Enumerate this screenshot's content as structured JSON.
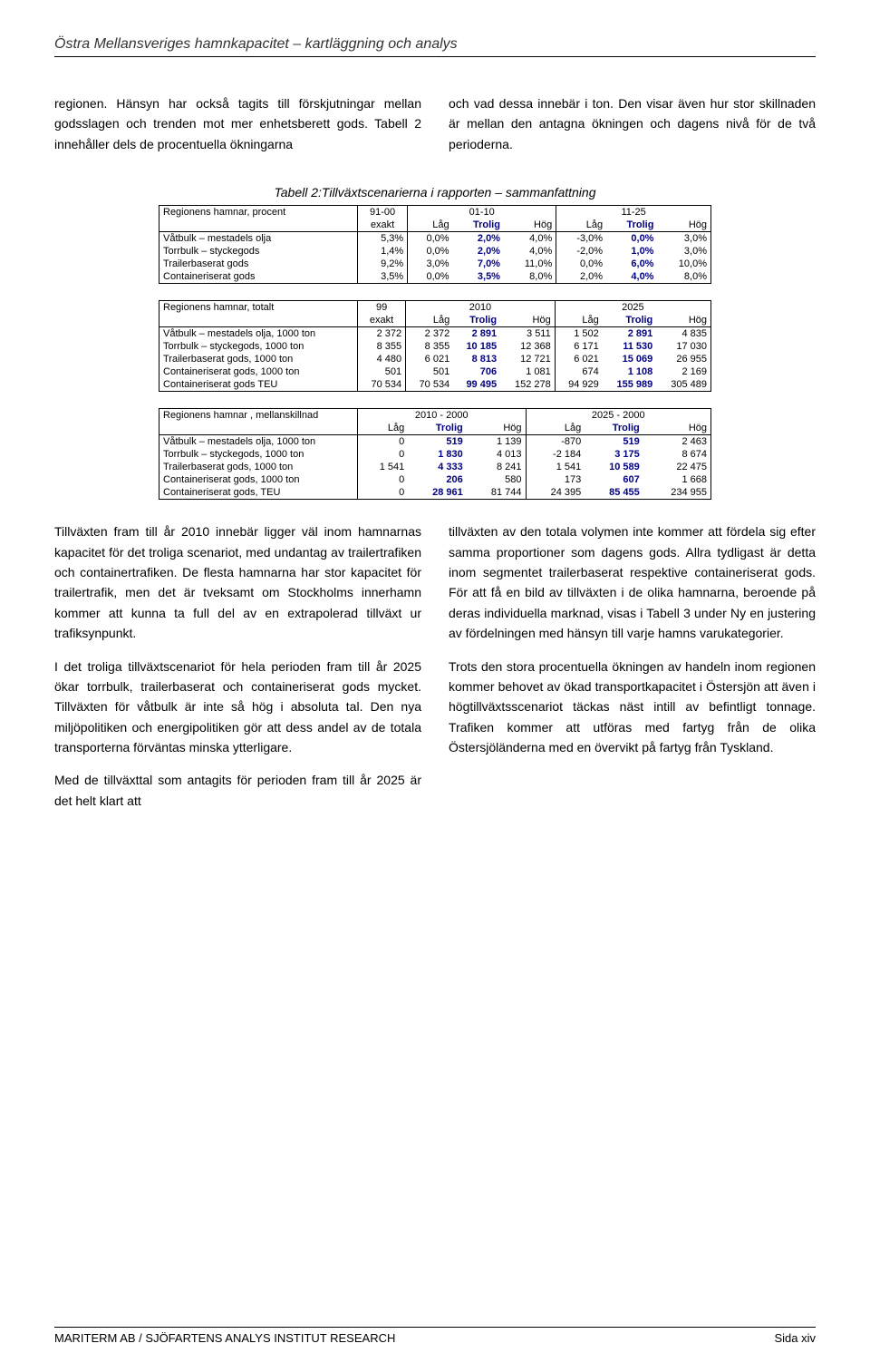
{
  "header": {
    "title": "Östra Mellansveriges hamnkapacitet – kartläggning och analys"
  },
  "intro": {
    "left": "regionen. Hänsyn har också tagits till förskjutningar mellan godsslagen och trenden mot mer enhetsberett gods. Tabell 2 innehåller dels de procentuella ökningarna",
    "right": "och vad dessa innebär i ton. Den visar även hur stor skillnaden är mellan den antagna ökningen och dagens nivå för de två perioderna."
  },
  "table_caption": "Tabell 2:Tillväxtscenarierna i rapporten – sammanfattning",
  "colors": {
    "trolig": "#000080"
  },
  "table1": {
    "title": "Regionens hamnar, procent",
    "period_cols": [
      "91-00",
      "01-10",
      "11-25"
    ],
    "sub_headers": [
      "exakt",
      "Låg",
      "Trolig",
      "Hög",
      "Låg",
      "Trolig",
      "Hög"
    ],
    "rows": [
      {
        "label": "Våtbulk – mestadels olja",
        "vals": [
          "5,3%",
          "0,0%",
          "2,0%",
          "4,0%",
          "-3,0%",
          "0,0%",
          "3,0%"
        ]
      },
      {
        "label": "Torrbulk – styckegods",
        "vals": [
          "1,4%",
          "0,0%",
          "2,0%",
          "4,0%",
          "-2,0%",
          "1,0%",
          "3,0%"
        ]
      },
      {
        "label": "Trailerbaserat gods",
        "vals": [
          "9,2%",
          "3,0%",
          "7,0%",
          "11,0%",
          "0,0%",
          "6,0%",
          "10,0%"
        ]
      },
      {
        "label": "Containeriserat gods",
        "vals": [
          "3,5%",
          "0,0%",
          "3,5%",
          "8,0%",
          "2,0%",
          "4,0%",
          "8,0%"
        ]
      }
    ]
  },
  "table2": {
    "title": "Regionens hamnar, totalt",
    "period_cols": [
      "99",
      "2010",
      "2025"
    ],
    "sub_headers": [
      "exakt",
      "Låg",
      "Trolig",
      "Hög",
      "Låg",
      "Trolig",
      "Hög"
    ],
    "rows": [
      {
        "label": "Våtbulk – mestadels olja, 1000 ton",
        "vals": [
          "2 372",
          "2 372",
          "2 891",
          "3 511",
          "1 502",
          "2 891",
          "4 835"
        ]
      },
      {
        "label": "Torrbulk – styckegods, 1000 ton",
        "vals": [
          "8 355",
          "8 355",
          "10 185",
          "12 368",
          "6 171",
          "11 530",
          "17 030"
        ]
      },
      {
        "label": "Trailerbaserat gods, 1000 ton",
        "vals": [
          "4 480",
          "6 021",
          "8 813",
          "12 721",
          "6 021",
          "15 069",
          "26 955"
        ]
      },
      {
        "label": "Containeriserat gods, 1000 ton",
        "vals": [
          "501",
          "501",
          "706",
          "1 081",
          "674",
          "1 108",
          "2 169"
        ]
      },
      {
        "label": "Containeriserat gods TEU",
        "vals": [
          "70 534",
          "70 534",
          "99 495",
          "152 278",
          "94 929",
          "155 989",
          "305 489"
        ]
      }
    ]
  },
  "table3": {
    "title": "Regionens hamnar , mellanskillnad",
    "period_cols": [
      "2010 - 2000",
      "2025 - 2000"
    ],
    "sub_headers": [
      "Låg",
      "Trolig",
      "Hög",
      "Låg",
      "Trolig",
      "Hög"
    ],
    "rows": [
      {
        "label": "Våtbulk – mestadels olja, 1000 ton",
        "vals": [
          "0",
          "519",
          "1 139",
          "-870",
          "519",
          "2 463"
        ]
      },
      {
        "label": "Torrbulk – styckegods, 1000 ton",
        "vals": [
          "0",
          "1 830",
          "4 013",
          "-2 184",
          "3 175",
          "8 674"
        ]
      },
      {
        "label": "Trailerbaserat gods, 1000 ton",
        "vals": [
          "1 541",
          "4 333",
          "8 241",
          "1 541",
          "10 589",
          "22 475"
        ]
      },
      {
        "label": "Containeriserat gods, 1000 ton",
        "vals": [
          "0",
          "206",
          "580",
          "173",
          "607",
          "1 668"
        ]
      },
      {
        "label": "Containeriserat gods, TEU",
        "vals": [
          "0",
          "28 961",
          "81 744",
          "24 395",
          "85 455",
          "234 955"
        ]
      }
    ]
  },
  "body": {
    "left_paras": [
      "Tillväxten fram till år 2010 innebär ligger väl inom hamnarnas kapacitet för det troliga scenariot, med undantag av trailertrafiken och containertrafiken. De flesta hamnarna har stor kapacitet för trailertrafik, men det är tveksamt om Stockholms innerhamn kommer att kunna ta full del av en extrapolerad tillväxt ur trafiksynpunkt.",
      "I det troliga tillväxtscenariot för hela perioden fram till år 2025 ökar torrbulk, trailerbaserat och containeriserat gods mycket. Tillväxten för våtbulk är inte så hög i absoluta tal. Den nya miljöpolitiken och energipolitiken gör att dess andel av de totala transporterna förväntas minska ytterligare.",
      "Med de tillväxttal som antagits för perioden fram till år 2025 är det helt klart att"
    ],
    "right_paras": [
      "tillväxten av den totala volymen inte kommer att fördela sig efter samma proportioner som dagens gods. Allra tydligast är detta inom segmentet trailerbaserat respektive containeriserat gods. För att få en bild av tillväxten i de olika hamnarna, beroende på deras individuella marknad, visas i Tabell 3 under Ny en justering av fördelningen med hänsyn till varje hamns varukategorier.",
      "Trots den stora procentuella ökningen av handeln inom regionen kommer behovet av ökad transportkapacitet i Östersjön att även i högtillväxtsscenariot täckas näst intill av befintligt tonnage. Trafiken kommer att utföras med fartyg från de olika Östersjöländerna med en övervikt på fartyg från Tyskland."
    ]
  },
  "footer": {
    "left": "MARITERM AB / SJÖFARTENS ANALYS INSTITUT RESEARCH",
    "right": "Sida xiv"
  }
}
